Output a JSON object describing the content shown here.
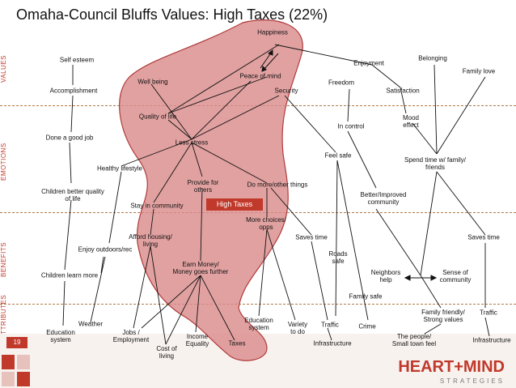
{
  "title": "Omaha-Council Bluffs Values: High Taxes (22%)",
  "row_labels": [
    "VALUES",
    "EMOTIONS",
    "BENEFITS",
    "ATTRIBUTES"
  ],
  "highlight": "High Taxes",
  "page_number": "19",
  "brand": {
    "name": "HEART+MIND",
    "sub": "STRATEGIES"
  },
  "colors": {
    "accent": "#c0392b",
    "blob_fill": "#d98a8a",
    "blob_stroke": "#b03a3a"
  },
  "nodes": {
    "happiness": "Happiness",
    "self_esteem": "Self esteem",
    "enjoyment": "Enjoyment",
    "belonging": "Belonging",
    "family_love": "Family love",
    "peace_of_mind": "Peace of mind",
    "well_being": "Well being",
    "freedom": "Freedom",
    "security": "Security",
    "satisfaction": "Satisfaction",
    "accomplishment": "Accomplishment",
    "quality_of_life": "Quality of life",
    "in_control": "In control",
    "mood_effect": "Mood\neffect",
    "less_stress": "Less stress",
    "done_good_job": "Done a good job",
    "feel_safe": "Feel safe",
    "spend_time": "Spend time w/ family/\nfriends",
    "healthy_lifestyle": "Healthy lifestyle",
    "provide_for_others": "Provide for\nothers",
    "do_more": "Do more/other things",
    "children_quality": "Children better quality\nof life",
    "better_community": "Better/Improved\ncommunity",
    "stay_in_community": "Stay in community",
    "more_choices": "More choices/\nopps",
    "afford_housing": "Afford housing/\nliving",
    "saves_time": "Saves time",
    "saves_time_2": "Saves time",
    "enjoy_outdoors": "Enjoy outdoors/rec",
    "roads_safe": "Roads\nsafe",
    "earn_money": "Earn Money/\nMoney goes further",
    "neighbors_help": "Neighbors\nhelp",
    "sense_of_community": "Sense of\ncommunity",
    "children_learn": "Children learn more",
    "family_safe": "Family safe",
    "family_friendly": "Family friendly/\nStrong values",
    "traffic_attr": "Traffic",
    "weather": "Weather",
    "education_system_attr": "Education\nsystem",
    "variety": "Variety\nto do",
    "traffic": "Traffic",
    "crime": "Crime",
    "education_system": "Education\nsystem",
    "jobs": "Jobs /\nEmployment",
    "income_equality": "Income\nEquality",
    "taxes": "Taxes",
    "people_small_town": "The people/\nSmall town feel",
    "infrastructure": "Infrastructure",
    "infrastructure_2": "Infrastructure",
    "cost_of_living": "Cost of\nliving"
  }
}
